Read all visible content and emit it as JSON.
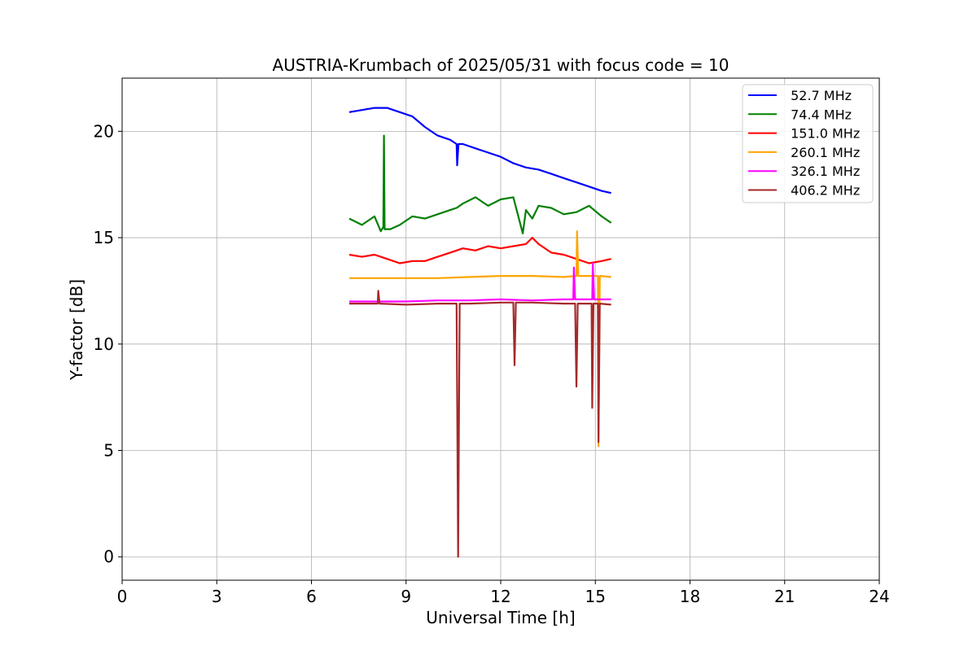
{
  "chart_data": {
    "type": "line",
    "title": "AUSTRIA-Krumbach of 2025/05/31 with focus code = 10",
    "xlabel": "Universal Time [h]",
    "ylabel": "Y-factor [dB]",
    "xlim": [
      0,
      24
    ],
    "ylim": [
      -1.1,
      22.5
    ],
    "xticks": [
      0,
      3,
      6,
      9,
      12,
      15,
      18,
      21,
      24
    ],
    "yticks": [
      0,
      5,
      10,
      15,
      20
    ],
    "grid": true,
    "legend_position": "top-right",
    "series": [
      {
        "name": " 52.7 MHz",
        "color": "#0000ff",
        "x": [
          7.2,
          7.6,
          8.0,
          8.4,
          8.8,
          9.2,
          9.6,
          10.0,
          10.4,
          10.6,
          10.62,
          10.66,
          10.8,
          11.2,
          11.6,
          12.0,
          12.4,
          12.8,
          13.2,
          13.6,
          14.0,
          14.4,
          14.8,
          15.2,
          15.5
        ],
        "y": [
          20.9,
          21.0,
          21.1,
          21.1,
          20.9,
          20.7,
          20.2,
          19.8,
          19.6,
          19.4,
          18.4,
          19.4,
          19.4,
          19.2,
          19.0,
          18.8,
          18.5,
          18.3,
          18.2,
          18.0,
          17.8,
          17.6,
          17.4,
          17.2,
          17.1
        ]
      },
      {
        "name": " 74.4 MHz",
        "color": "#008000",
        "x": [
          7.2,
          7.6,
          8.0,
          8.2,
          8.28,
          8.3,
          8.32,
          8.5,
          8.8,
          9.2,
          9.6,
          10.0,
          10.4,
          10.6,
          10.8,
          11.2,
          11.6,
          12.0,
          12.4,
          12.7,
          12.8,
          13.0,
          13.2,
          13.6,
          14.0,
          14.4,
          14.8,
          15.2,
          15.5
        ],
        "y": [
          15.9,
          15.6,
          16.0,
          15.3,
          15.5,
          19.8,
          15.4,
          15.4,
          15.6,
          16.0,
          15.9,
          16.1,
          16.3,
          16.4,
          16.6,
          16.9,
          16.5,
          16.8,
          16.9,
          15.2,
          16.3,
          15.9,
          16.5,
          16.4,
          16.1,
          16.2,
          16.5,
          16.0,
          15.7
        ]
      },
      {
        "name": " 151.0 MHz",
        "color": "#ff0000",
        "x": [
          7.2,
          7.6,
          8.0,
          8.4,
          8.8,
          9.2,
          9.6,
          10.0,
          10.4,
          10.6,
          10.8,
          11.2,
          11.6,
          12.0,
          12.4,
          12.8,
          13.0,
          13.2,
          13.6,
          14.0,
          14.4,
          14.8,
          15.2,
          15.5
        ],
        "y": [
          14.2,
          14.1,
          14.2,
          14.0,
          13.8,
          13.9,
          13.9,
          14.1,
          14.3,
          14.4,
          14.5,
          14.4,
          14.6,
          14.5,
          14.6,
          14.7,
          15.0,
          14.7,
          14.3,
          14.2,
          14.0,
          13.8,
          13.9,
          14.0
        ]
      },
      {
        "name": " 260.1 MHz",
        "color": "#ffa500",
        "x": [
          7.2,
          8.0,
          9.0,
          10.0,
          11.0,
          12.0,
          13.0,
          14.0,
          14.4,
          14.42,
          14.46,
          15.0,
          15.08,
          15.1,
          15.14,
          15.5
        ],
        "y": [
          13.1,
          13.1,
          13.1,
          13.1,
          13.15,
          13.2,
          13.2,
          13.15,
          13.2,
          15.3,
          13.2,
          13.2,
          13.2,
          5.2,
          13.2,
          13.15
        ]
      },
      {
        "name": " 326.1 MHz",
        "color": "#ff00ff",
        "x": [
          7.2,
          8.0,
          9.0,
          10.0,
          11.0,
          12.0,
          13.0,
          14.0,
          14.3,
          14.32,
          14.36,
          14.9,
          14.92,
          14.96,
          15.5
        ],
        "y": [
          12.0,
          12.0,
          12.0,
          12.05,
          12.05,
          12.1,
          12.05,
          12.1,
          12.1,
          13.6,
          12.1,
          12.1,
          13.8,
          12.1,
          12.1
        ]
      },
      {
        "name": " 406.2 MHz",
        "color": "#a52a2a",
        "x": [
          7.2,
          8.0,
          8.1,
          8.12,
          8.16,
          9.0,
          10.0,
          10.6,
          10.65,
          10.7,
          11.0,
          12.0,
          12.4,
          12.44,
          12.48,
          13.0,
          14.0,
          14.36,
          14.4,
          14.44,
          14.88,
          14.9,
          14.94,
          15.08,
          15.1,
          15.14,
          15.5
        ],
        "y": [
          11.9,
          11.9,
          11.9,
          12.5,
          11.9,
          11.85,
          11.9,
          11.9,
          0.0,
          11.9,
          11.9,
          11.95,
          11.95,
          9.0,
          11.95,
          11.95,
          11.9,
          11.9,
          8.0,
          11.9,
          11.9,
          7.0,
          11.9,
          11.9,
          5.4,
          11.9,
          11.85
        ]
      }
    ]
  }
}
